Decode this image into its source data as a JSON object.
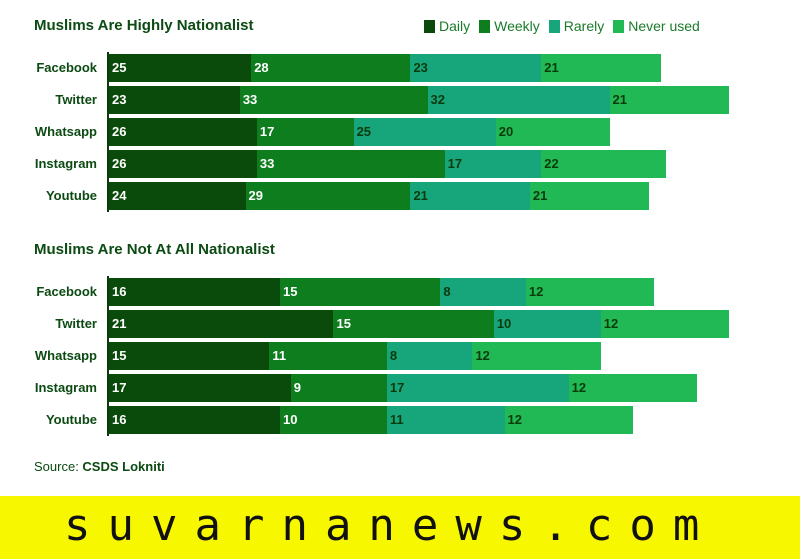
{
  "chart_data": [
    {
      "type": "bar",
      "orientation": "horizontal",
      "stacked": true,
      "title": "Muslims Are Highly Nationalist",
      "categories": [
        "Facebook",
        "Twitter",
        "Whatsapp",
        "Instagram",
        "Youtube"
      ],
      "series": [
        {
          "name": "Daily",
          "values": [
            25,
            23,
            26,
            26,
            24
          ]
        },
        {
          "name": "Weekly",
          "values": [
            28,
            33,
            17,
            33,
            29
          ]
        },
        {
          "name": "Rarely",
          "values": [
            23,
            32,
            25,
            17,
            21
          ]
        },
        {
          "name": "Never used",
          "values": [
            21,
            21,
            20,
            22,
            21
          ]
        }
      ],
      "legend": "top-right"
    },
    {
      "type": "bar",
      "orientation": "horizontal",
      "stacked": true,
      "title": "Muslims Are Not At All Nationalist",
      "categories": [
        "Facebook",
        "Twitter",
        "Whatsapp",
        "Instagram",
        "Youtube"
      ],
      "series": [
        {
          "name": "Daily",
          "values": [
            16,
            21,
            15,
            17,
            16
          ]
        },
        {
          "name": "Weekly",
          "values": [
            15,
            15,
            11,
            9,
            10
          ]
        },
        {
          "name": "Rarely",
          "values": [
            8,
            10,
            8,
            17,
            11
          ]
        },
        {
          "name": "Never used",
          "values": [
            12,
            12,
            12,
            12,
            12
          ]
        }
      ]
    }
  ],
  "colors": {
    "Daily": "#0a4a0a",
    "Weekly": "#0e7d1e",
    "Rarely": "#17a57c",
    "Never used": "#20b955"
  },
  "label_colors": {
    "Daily": "#ffffff",
    "Weekly": "#ffffff",
    "Rarely": "#0b3a0b",
    "Never used": "#0b3a0b"
  },
  "source": {
    "prefix": "Source: ",
    "name": "CSDS Lokniti"
  },
  "watermark": "suvarnanews.com"
}
